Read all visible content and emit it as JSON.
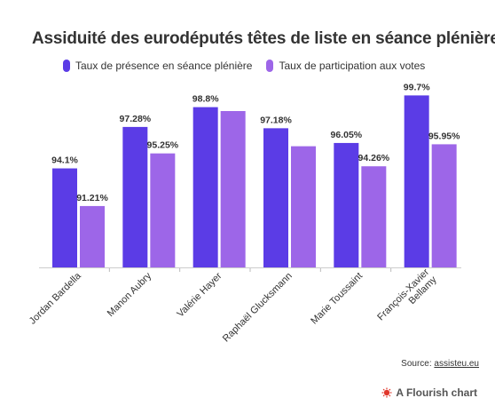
{
  "chart_data": {
    "type": "bar",
    "title": "Assiduité des eurodéputés têtes de liste en séance plénière",
    "categories": [
      "Jordan Bardella",
      "Manon Aubry",
      "Valérie Hayer",
      "Raphaël Glucksmann",
      "Marie Toussaint",
      "François-Xavier Bellamy"
    ],
    "series": [
      {
        "name": "Taux de présence en séance plénière",
        "color": "#5b3ce6",
        "values": [
          94.1,
          97.28,
          98.8,
          97.18,
          96.05,
          99.7
        ],
        "labels": [
          "94.1%",
          "97.28%",
          "98.8%",
          "97.18%",
          "96.05%",
          "99.7%"
        ]
      },
      {
        "name": "Taux de participation aux votes",
        "color": "#9d66e8",
        "values": [
          91.21,
          95.25,
          98.5,
          95.8,
          94.26,
          95.95
        ],
        "labels": [
          "91.21%",
          "95.25%",
          "",
          "",
          "94.26%",
          "95.95%"
        ]
      }
    ],
    "ylim": [
      86.5,
      100
    ],
    "grid": false,
    "legend_position": "top-left"
  },
  "source": {
    "prefix": "Source: ",
    "link": "assisteu.eu"
  },
  "brand": {
    "label": "A Flourish chart"
  }
}
